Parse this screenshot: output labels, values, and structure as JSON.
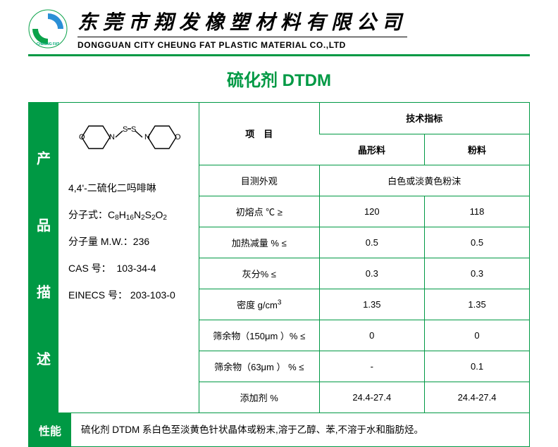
{
  "brand_color": "#009944",
  "header": {
    "logo_text": "CHEUNG FAT",
    "company_cn": "东莞市翔发橡塑材料有限公司",
    "company_en": "DONGGUAN CITY CHEUNG FAT PLASTIC MATERIAL  CO.,LTD"
  },
  "title": "硫化剂 DTDM",
  "side_label_chars": [
    "产",
    "品",
    "描",
    "述"
  ],
  "info": {
    "structure_alt": "O⟨ ⟩N–S–S–N⟨ ⟩O (4,4'-二硫化二吗啡啉 结构式)",
    "name": "4,4'-二硫化二吗啡啉",
    "formula_label": "分子式：",
    "formula_html": "C<sub>8</sub>H<sub>16</sub>N<sub>2</sub>S<sub>2</sub>O<sub>2</sub>",
    "mw_label": "分子量 M.W.：",
    "mw_value": "236",
    "cas_label": "CAS 号：",
    "cas_value": "103-34-4",
    "einecs_label": "EINECS 号：",
    "einecs_value": "203-103-0"
  },
  "spec": {
    "header_param": "项　目",
    "header_tech": "技术指标",
    "col1_label": "晶形料",
    "col2_label": "粉料",
    "rows": [
      {
        "param": "目测外观",
        "merged": "白色或淡黄色粉沫"
      },
      {
        "param": "初熔点 ℃ ≥",
        "c1": "120",
        "c2": "118"
      },
      {
        "param": "加热减量 % ≤",
        "c1": "0.5",
        "c2": "0.5"
      },
      {
        "param": "灰分% ≤",
        "c1": "0.3",
        "c2": "0.3"
      },
      {
        "param_html": "密度 g/cm<sup>3</sup>",
        "c1": "1.35",
        "c2": "1.35"
      },
      {
        "param": "筛余物（150μm ）% ≤",
        "c1": "0",
        "c2": "0"
      },
      {
        "param": "筛余物（63μm ）  % ≤",
        "c1": "-",
        "c2": "0.1"
      },
      {
        "param": "添加剂 %",
        "c1": "24.4-27.4",
        "c2": "24.4-27.4"
      }
    ]
  },
  "performance": {
    "label": "性能",
    "text": "硫化剂 DTDM 系白色至淡黄色针状晶体或粉末,溶于乙醇、苯,不溶于水和脂肪烃。"
  }
}
